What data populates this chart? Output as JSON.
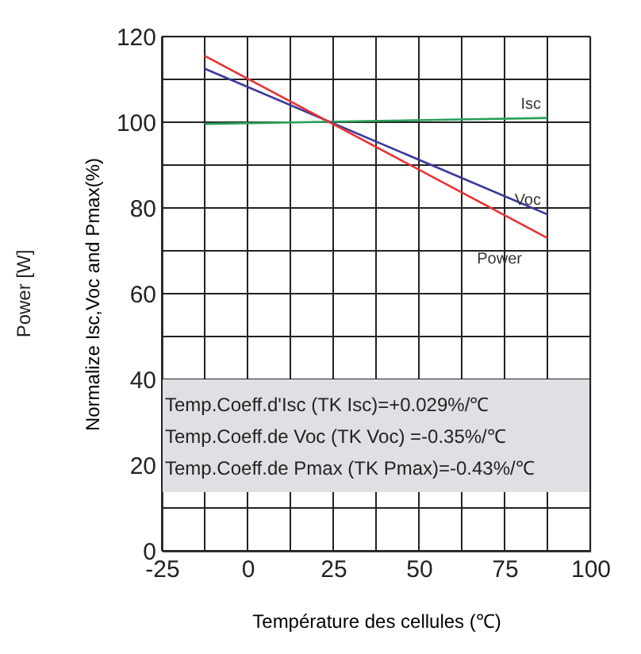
{
  "chart_data": {
    "type": "line",
    "xlabel": "Température des cellules (℃)",
    "ylabel": "Normalize Isc,Voc and Pmax(%)",
    "x": [
      -12.5,
      87.5
    ],
    "series": [
      {
        "name": "Isc",
        "color": "#2aa05a",
        "values": [
          99.6,
          101
        ]
      },
      {
        "name": "Voc",
        "color": "#3a3a9a",
        "values": [
          112.5,
          78.5
        ]
      },
      {
        "name": "Power",
        "color": "#e83232",
        "values": [
          115.5,
          73
        ]
      }
    ],
    "xlim": [
      -25,
      100
    ],
    "ylim": [
      0,
      120
    ],
    "xticks": [
      -25,
      {
        "value": -12.5,
        "label": null
      },
      0,
      {
        "value": 12.5,
        "label": null
      },
      25,
      {
        "value": 37.5,
        "label": null
      },
      50,
      {
        "value": 62.5,
        "label": null
      },
      75,
      {
        "value": 87.5,
        "label": null
      },
      100
    ],
    "yticks": [
      0,
      {
        "value": 10,
        "label": null
      },
      20,
      40,
      {
        "value": 50,
        "label": null
      },
      60,
      {
        "value": 70,
        "label": null
      },
      80,
      {
        "value": 90,
        "label": null
      },
      100,
      {
        "value": 110,
        "label": null
      },
      120
    ],
    "grid": true,
    "legend": false,
    "marker": "none",
    "line_style": "solid",
    "annotations": [
      "Power [W]",
      "Temp.Coeff.d'Isc (TK Isc)=+0.029%/℃",
      "Temp.Coeff.de Voc (TK Voc) =-0.35%/℃",
      "Temp.Coeff.de Pmax (TK Pmax)=-0.43%/℃"
    ]
  }
}
